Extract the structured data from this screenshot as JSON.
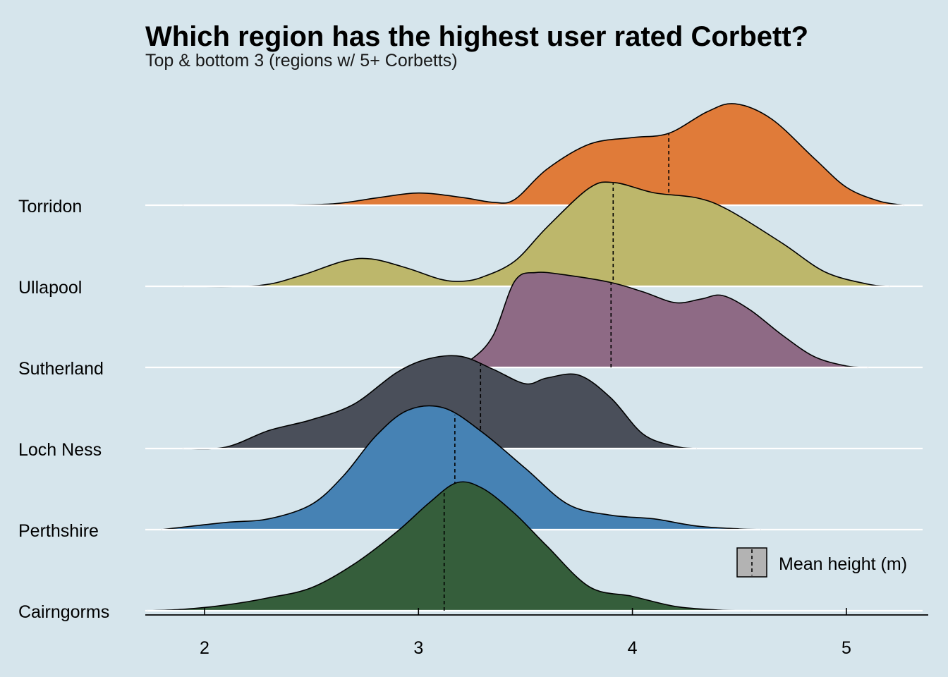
{
  "chart_data": {
    "type": "ridgeline",
    "title": "Which region has the highest user rated Corbett?",
    "subtitle": "Top & bottom 3 (regions w/ 5+ Corbetts)",
    "x_ticks": [
      2,
      3,
      4,
      5
    ],
    "xlim": [
      1.73,
      5.38
    ],
    "legend": {
      "label": "Mean height (m)",
      "position": "bottom-right"
    },
    "grid": "horizontal baselines only",
    "series": [
      {
        "name": "Torridon",
        "color": "#e07b39",
        "mean": 4.17,
        "density": [
          [
            1.9,
            0
          ],
          [
            2.3,
            0
          ],
          [
            2.6,
            0.02
          ],
          [
            2.8,
            0.1
          ],
          [
            3.0,
            0.17
          ],
          [
            3.2,
            0.11
          ],
          [
            3.35,
            0.04
          ],
          [
            3.45,
            0.08
          ],
          [
            3.6,
            0.5
          ],
          [
            3.8,
            0.85
          ],
          [
            4.0,
            0.94
          ],
          [
            4.17,
            1.0
          ],
          [
            4.35,
            1.3
          ],
          [
            4.48,
            1.41
          ],
          [
            4.65,
            1.2
          ],
          [
            4.85,
            0.65
          ],
          [
            5.0,
            0.25
          ],
          [
            5.15,
            0.06
          ],
          [
            5.27,
            0
          ]
        ]
      },
      {
        "name": "Ullapool",
        "color": "#bdb76b",
        "mean": 3.91,
        "density": [
          [
            1.9,
            0
          ],
          [
            2.25,
            0.01
          ],
          [
            2.45,
            0.15
          ],
          [
            2.65,
            0.35
          ],
          [
            2.78,
            0.38
          ],
          [
            2.95,
            0.25
          ],
          [
            3.1,
            0.1
          ],
          [
            3.2,
            0.07
          ],
          [
            3.3,
            0.13
          ],
          [
            3.45,
            0.35
          ],
          [
            3.6,
            0.82
          ],
          [
            3.8,
            1.37
          ],
          [
            3.92,
            1.44
          ],
          [
            4.1,
            1.3
          ],
          [
            4.3,
            1.23
          ],
          [
            4.45,
            1.06
          ],
          [
            4.7,
            0.6
          ],
          [
            4.9,
            0.2
          ],
          [
            5.1,
            0.03
          ],
          [
            5.2,
            0
          ]
        ]
      },
      {
        "name": "Sutherland",
        "color": "#8e6a85",
        "mean": 3.9,
        "density": [
          [
            3.15,
            0
          ],
          [
            3.25,
            0.12
          ],
          [
            3.35,
            0.45
          ],
          [
            3.45,
            1.2
          ],
          [
            3.55,
            1.32
          ],
          [
            3.7,
            1.28
          ],
          [
            3.9,
            1.18
          ],
          [
            4.05,
            1.05
          ],
          [
            4.2,
            0.9
          ],
          [
            4.32,
            0.95
          ],
          [
            4.42,
            1.0
          ],
          [
            4.55,
            0.8
          ],
          [
            4.7,
            0.45
          ],
          [
            4.85,
            0.15
          ],
          [
            5.0,
            0.02
          ],
          [
            5.1,
            0
          ]
        ]
      },
      {
        "name": "Loch Ness",
        "color": "#4a4f5a",
        "mean": 3.29,
        "density": [
          [
            1.9,
            0
          ],
          [
            2.1,
            0.02
          ],
          [
            2.3,
            0.25
          ],
          [
            2.5,
            0.4
          ],
          [
            2.7,
            0.62
          ],
          [
            2.9,
            1.06
          ],
          [
            3.05,
            1.25
          ],
          [
            3.2,
            1.28
          ],
          [
            3.35,
            1.1
          ],
          [
            3.5,
            0.9
          ],
          [
            3.6,
            0.98
          ],
          [
            3.75,
            1.02
          ],
          [
            3.9,
            0.7
          ],
          [
            4.05,
            0.2
          ],
          [
            4.2,
            0.03
          ],
          [
            4.3,
            0
          ]
        ]
      },
      {
        "name": "Perthshire",
        "color": "#4682b4",
        "mean": 3.17,
        "density": [
          [
            1.8,
            0
          ],
          [
            2.1,
            0.1
          ],
          [
            2.3,
            0.15
          ],
          [
            2.5,
            0.35
          ],
          [
            2.65,
            0.75
          ],
          [
            2.8,
            1.3
          ],
          [
            2.95,
            1.66
          ],
          [
            3.12,
            1.69
          ],
          [
            3.3,
            1.35
          ],
          [
            3.5,
            0.85
          ],
          [
            3.7,
            0.35
          ],
          [
            3.9,
            0.2
          ],
          [
            4.1,
            0.15
          ],
          [
            4.3,
            0.05
          ],
          [
            4.5,
            0.01
          ],
          [
            4.6,
            0
          ]
        ]
      },
      {
        "name": "Cairngorms",
        "color": "#355e3b",
        "mean": 3.12,
        "density": [
          [
            1.73,
            0
          ],
          [
            1.9,
            0.02
          ],
          [
            2.1,
            0.08
          ],
          [
            2.3,
            0.18
          ],
          [
            2.5,
            0.32
          ],
          [
            2.7,
            0.65
          ],
          [
            2.9,
            1.1
          ],
          [
            3.05,
            1.5
          ],
          [
            3.18,
            1.78
          ],
          [
            3.3,
            1.7
          ],
          [
            3.45,
            1.35
          ],
          [
            3.6,
            0.9
          ],
          [
            3.8,
            0.33
          ],
          [
            4.0,
            0.2
          ],
          [
            4.2,
            0.06
          ],
          [
            4.4,
            0.01
          ],
          [
            4.55,
            0
          ]
        ]
      }
    ]
  }
}
